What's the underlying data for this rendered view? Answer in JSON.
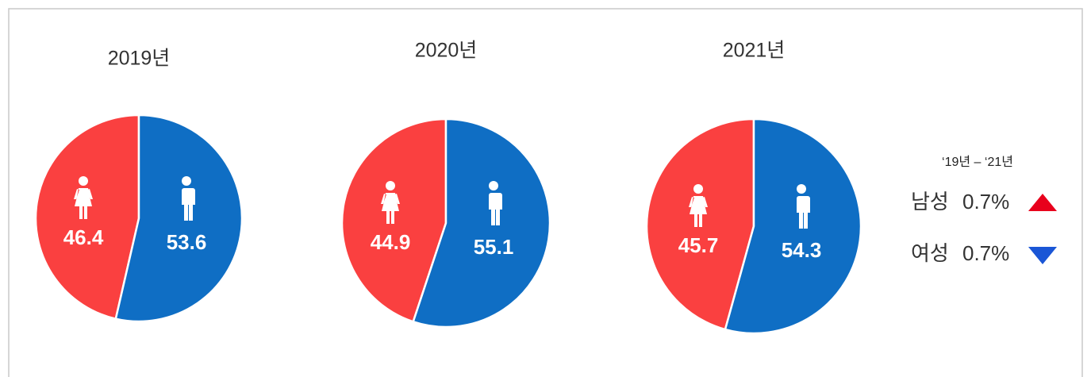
{
  "chart_data": [
    {
      "type": "pie",
      "title": "2019년",
      "values": [
        46.4,
        53.6
      ],
      "colors": [
        "#fa4040",
        "#0f6ec4"
      ]
    },
    {
      "type": "pie",
      "title": "2020년",
      "values": [
        44.9,
        55.1
      ],
      "colors": [
        "#fa4040",
        "#0f6ec4"
      ]
    },
    {
      "type": "pie",
      "title": "2021년",
      "values": [
        45.7,
        54.3
      ],
      "colors": [
        "#fa4040",
        "#0f6ec4"
      ]
    }
  ],
  "summary": {
    "title": "‘19년 – ‘21년",
    "items": [
      {
        "label": "남성",
        "value": "0.7%"
      },
      {
        "label": "여성",
        "value": "0.7%"
      }
    ]
  }
}
